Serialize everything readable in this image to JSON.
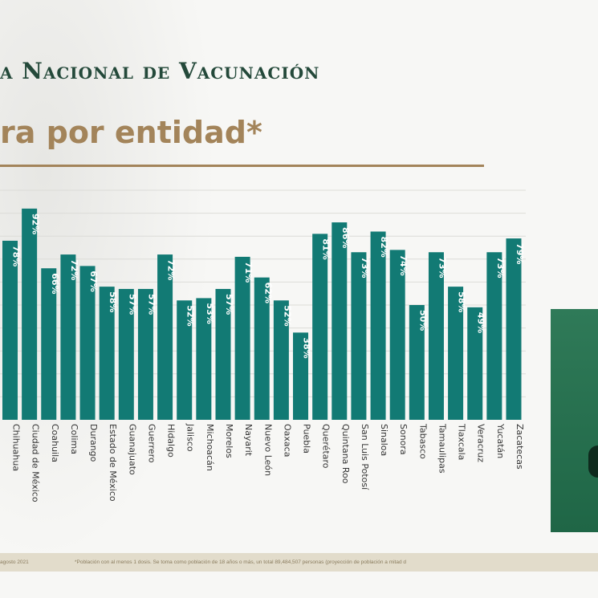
{
  "header": {
    "title": "a Nacional de Vacunación",
    "subtitle": "ra por entidad*"
  },
  "footer": {
    "date": "agosto 2021",
    "note": "*Población con al menos 1 dosis. Se toma como población de 18 años o más, un total 89,484,507 personas (proyección de población a mitad d"
  },
  "colors": {
    "bar": "#127a74",
    "header": "#24493a",
    "accent": "#a3845a"
  },
  "chart_data": {
    "type": "bar",
    "title": "",
    "xlabel": "",
    "ylabel": "",
    "ylim": [
      0,
      100
    ],
    "grid": true,
    "categories": [
      "Chihuahua",
      "Ciudad de México",
      "Coahuila",
      "Colima",
      "Durango",
      "Estado de México",
      "Guanajuato",
      "Guerrero",
      "Hidalgo",
      "Jalisco",
      "Michoacán",
      "Morelos",
      "Nayarit",
      "Nuevo León",
      "Oaxaca",
      "Puebla",
      "Querétaro",
      "Quintana Roo",
      "San Luis Potosí",
      "Sinaloa",
      "Sonora",
      "Tabasco",
      "Tamaulipas",
      "Tlaxcala",
      "Veracruz",
      "Yucatán",
      "Zacatecas"
    ],
    "values": [
      78,
      92,
      66,
      72,
      67,
      58,
      57,
      57,
      72,
      52,
      53,
      57,
      71,
      62,
      52,
      38,
      81,
      86,
      73,
      82,
      74,
      50,
      73,
      58,
      49,
      73,
      79
    ],
    "labels": [
      "78%",
      "92%",
      "66%",
      "72%",
      "67%",
      "58%",
      "57%",
      "57%",
      "72%",
      "52%",
      "53%",
      "57%",
      "71%",
      "62%",
      "52%",
      "38%",
      "81%",
      "86%",
      "73%",
      "82%",
      "74%",
      "50%",
      "73%",
      "58%",
      "49%",
      "73%",
      "79%"
    ]
  }
}
